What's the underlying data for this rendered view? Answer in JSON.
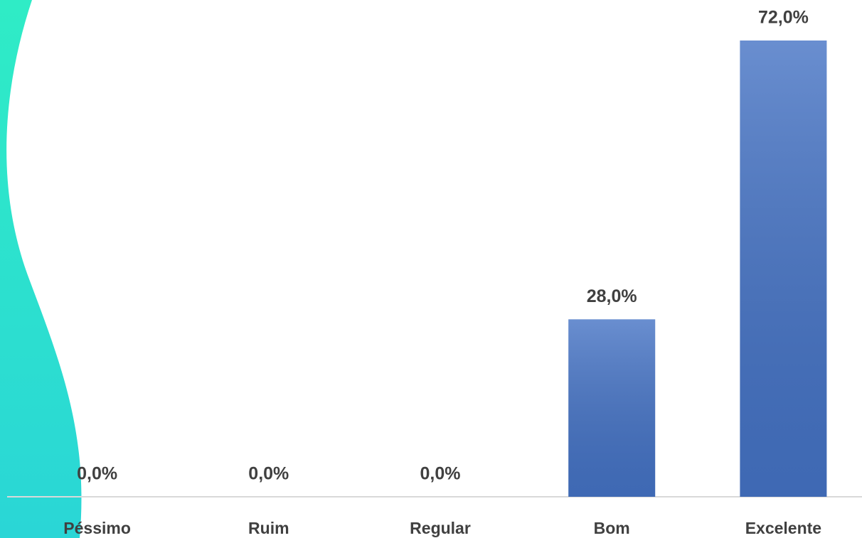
{
  "chart_data": {
    "type": "bar",
    "categories": [
      "Péssimo",
      "Ruim",
      "Regular",
      "Bom",
      "Excelente"
    ],
    "values": [
      0,
      0,
      0,
      28,
      72
    ],
    "value_labels": [
      "0,0%",
      "0,0%",
      "0,0%",
      "28,0%",
      "72,0%"
    ],
    "color": "#4472c4"
  }
}
